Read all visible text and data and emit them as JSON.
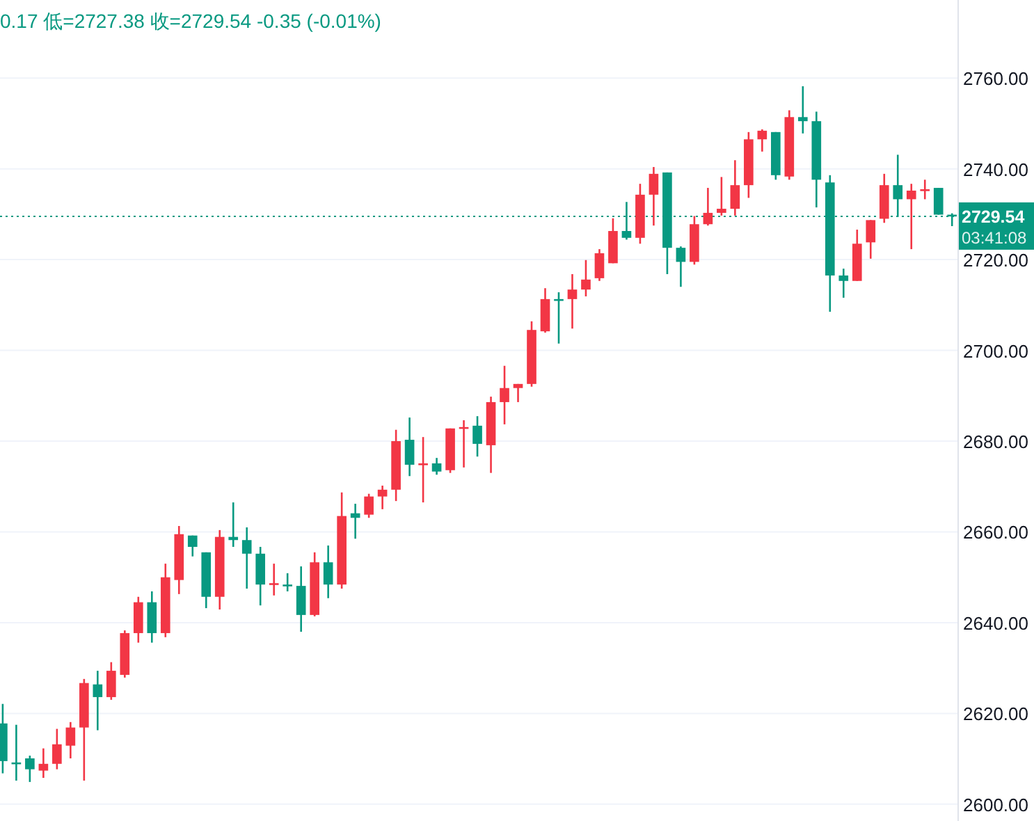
{
  "chart_data": {
    "type": "candlestick",
    "categories": [
      null,
      null,
      null,
      null,
      null,
      null,
      null,
      null,
      null,
      null,
      null,
      null,
      null,
      null,
      null,
      null,
      null,
      null,
      null,
      null,
      null,
      null,
      null,
      null,
      null,
      null,
      null,
      null,
      null,
      null,
      null,
      null,
      null,
      null,
      null,
      null,
      null,
      null,
      null,
      null,
      null,
      null,
      null,
      null,
      null,
      null,
      null,
      null,
      null,
      null,
      null,
      null,
      null,
      null,
      null,
      null,
      null,
      null,
      null,
      null,
      null,
      null,
      null,
      null,
      null,
      null,
      null,
      null,
      null,
      null,
      null
    ],
    "ohlc": [
      [
        2617.8,
        2622.1,
        2606.8,
        2609.5
      ],
      [
        2609.2,
        2617.5,
        2605.2,
        2608.9
      ],
      [
        2610.1,
        2610.7,
        2604.9,
        2607.7
      ],
      [
        2607.4,
        2612.3,
        2605.8,
        2608.9
      ],
      [
        2608.9,
        2616.6,
        2607.7,
        2613.2
      ],
      [
        2612.9,
        2618.1,
        2610.1,
        2616.9
      ],
      [
        2616.9,
        2627.6,
        2605.2,
        2626.7
      ],
      [
        2626.4,
        2629.4,
        2616.3,
        2623.6
      ],
      [
        2623.6,
        2631.3,
        2623.0,
        2629.4
      ],
      [
        2628.5,
        2638.3,
        2627.9,
        2637.7
      ],
      [
        2637.7,
        2645.7,
        2635.6,
        2644.5
      ],
      [
        2644.5,
        2646.9,
        2635.6,
        2637.7
      ],
      [
        2637.7,
        2653.0,
        2636.8,
        2650.0
      ],
      [
        2649.4,
        2661.3,
        2646.3,
        2659.5
      ],
      [
        2659.2,
        2659.2,
        2654.6,
        2656.7
      ],
      [
        2655.5,
        2655.5,
        2643.2,
        2645.7
      ],
      [
        2645.7,
        2660.4,
        2642.9,
        2658.9
      ],
      [
        2658.9,
        2666.5,
        2656.7,
        2658.2
      ],
      [
        2658.2,
        2661.0,
        2647.5,
        2655.2
      ],
      [
        2655.2,
        2656.7,
        2643.8,
        2648.4
      ],
      [
        2648.4,
        2653.0,
        2646.0,
        2648.7
      ],
      [
        2648.4,
        2650.9,
        2646.9,
        2648.1
      ],
      [
        2648.1,
        2652.4,
        2638.0,
        2641.7
      ],
      [
        2641.7,
        2655.5,
        2641.4,
        2653.3
      ],
      [
        2653.3,
        2657.0,
        2645.4,
        2648.4
      ],
      [
        2648.4,
        2668.7,
        2647.5,
        2663.5
      ],
      [
        2664.1,
        2666.2,
        2658.5,
        2663.1
      ],
      [
        2663.8,
        2668.4,
        2663.1,
        2667.8
      ],
      [
        2667.8,
        2670.2,
        2665.0,
        2669.3
      ],
      [
        2669.3,
        2682.5,
        2666.8,
        2680.0
      ],
      [
        2680.3,
        2685.2,
        2672.3,
        2674.8
      ],
      [
        2674.8,
        2680.9,
        2666.5,
        2675.1
      ],
      [
        2675.1,
        2676.3,
        2672.6,
        2673.3
      ],
      [
        2673.6,
        2682.8,
        2673.0,
        2682.8
      ],
      [
        2682.8,
        2684.6,
        2674.2,
        2683.1
      ],
      [
        2683.4,
        2685.5,
        2676.6,
        2679.4
      ],
      [
        2679.1,
        2689.8,
        2673.0,
        2688.6
      ],
      [
        2688.6,
        2696.6,
        2683.7,
        2691.7
      ],
      [
        2691.7,
        2692.6,
        2688.6,
        2692.6
      ],
      [
        2692.6,
        2706.4,
        2692.0,
        2704.5
      ],
      [
        2704.2,
        2713.7,
        2703.9,
        2711.3
      ],
      [
        2711.3,
        2712.8,
        2701.5,
        2711.0
      ],
      [
        2711.3,
        2716.8,
        2704.8,
        2713.4
      ],
      [
        2713.4,
        2719.9,
        2711.9,
        2715.6
      ],
      [
        2715.9,
        2722.3,
        2715.3,
        2721.4
      ],
      [
        2719.2,
        2729.1,
        2719.2,
        2726.3
      ],
      [
        2726.3,
        2732.7,
        2724.4,
        2724.8
      ],
      [
        2724.8,
        2736.7,
        2723.5,
        2734.3
      ],
      [
        2734.3,
        2740.4,
        2727.5,
        2738.9
      ],
      [
        2739.2,
        2739.2,
        2716.8,
        2722.6
      ],
      [
        2722.6,
        2722.9,
        2714.0,
        2719.5
      ],
      [
        2719.5,
        2729.6,
        2718.9,
        2727.8
      ],
      [
        2727.8,
        2735.8,
        2727.5,
        2730.3
      ],
      [
        2730.3,
        2738.2,
        2729.7,
        2731.2
      ],
      [
        2731.2,
        2741.9,
        2729.7,
        2736.4
      ],
      [
        2736.4,
        2748.1,
        2733.6,
        2746.5
      ],
      [
        2746.5,
        2748.7,
        2743.8,
        2748.4
      ],
      [
        2748.1,
        2748.1,
        2737.6,
        2738.6
      ],
      [
        2738.3,
        2752.9,
        2737.6,
        2751.4
      ],
      [
        2751.4,
        2758.2,
        2747.8,
        2750.5
      ],
      [
        2750.5,
        2752.6,
        2731.5,
        2737.6
      ],
      [
        2737.0,
        2738.6,
        2708.5,
        2716.5
      ],
      [
        2716.5,
        2718.0,
        2711.6,
        2715.3
      ],
      [
        2715.3,
        2726.6,
        2715.3,
        2723.5
      ],
      [
        2723.8,
        2728.7,
        2720.2,
        2728.7
      ],
      [
        2729.0,
        2738.9,
        2728.1,
        2736.4
      ],
      [
        2736.4,
        2743.1,
        2729.4,
        2733.3
      ],
      [
        2733.3,
        2736.7,
        2722.3,
        2735.2
      ],
      [
        2735.2,
        2737.6,
        2733.3,
        2735.5
      ],
      [
        2735.8,
        2735.8,
        2729.9,
        2729.9
      ],
      [
        2729.9,
        2730.2,
        2727.38,
        2729.54
      ]
    ],
    "colors": [
      "#089981",
      "#089981",
      "#089981",
      "#f23645",
      "#f23645",
      "#f23645",
      "#f23645",
      "#089981",
      "#f23645",
      "#f23645",
      "#f23645",
      "#089981",
      "#f23645",
      "#f23645",
      "#089981",
      "#089981",
      "#f23645",
      "#089981",
      "#089981",
      "#089981",
      "#f23645",
      "#089981",
      "#089981",
      "#f23645",
      "#089981",
      "#f23645",
      "#089981",
      "#f23645",
      "#f23645",
      "#f23645",
      "#089981",
      "#f23645",
      "#089981",
      "#f23645",
      "#f23645",
      "#089981",
      "#f23645",
      "#f23645",
      "#f23645",
      "#f23645",
      "#f23645",
      "#089981",
      "#f23645",
      "#f23645",
      "#f23645",
      "#f23645",
      "#089981",
      "#f23645",
      "#f23645",
      "#089981",
      "#089981",
      "#f23645",
      "#f23645",
      "#f23645",
      "#f23645",
      "#f23645",
      "#f23645",
      "#089981",
      "#f23645",
      "#089981",
      "#089981",
      "#089981",
      "#089981",
      "#f23645",
      "#f23645",
      "#f23645",
      "#089981",
      "#f23645",
      "#f23645",
      "#089981",
      "#089981"
    ],
    "ylim": [
      2596.3,
      2777.2
    ],
    "yticks": [
      {
        "value": 2600,
        "label": "2600.00"
      },
      {
        "value": 2620,
        "label": "2620.00"
      },
      {
        "value": 2640,
        "label": "2640.00"
      },
      {
        "value": 2660,
        "label": "2660.00"
      },
      {
        "value": 2680,
        "label": "2680.00"
      },
      {
        "value": 2700,
        "label": "2700.00"
      },
      {
        "value": 2720,
        "label": "2720.00"
      },
      {
        "value": 2740,
        "label": "2740.00"
      },
      {
        "value": 2760,
        "label": "2760.00"
      }
    ],
    "ref_lines": [
      {
        "axis": "y",
        "value": 2729.54,
        "label": "2729.54",
        "color": "#089981",
        "line_style": "dotted"
      }
    ],
    "annotations": [
      "0.17 低=2727.38 收=2729.54 -0.35 (-0.01%)",
      "03:41:08"
    ],
    "grid": "y",
    "tick_labels": "y"
  }
}
